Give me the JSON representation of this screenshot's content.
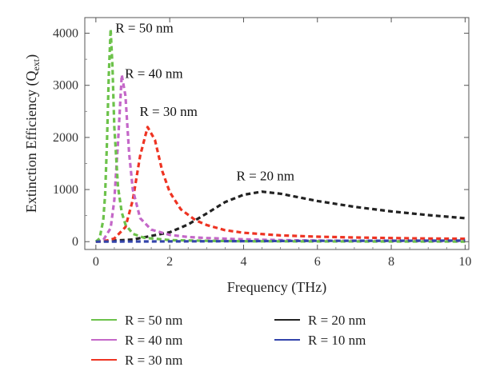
{
  "chart_data": {
    "type": "line",
    "xlabel": "Frequency (THz)",
    "ylabel": "Extinction Efficiency (Q",
    "ylabel_subscript": "ext",
    "ylabel_suffix": ")",
    "xlim": [
      -0.3,
      10.1
    ],
    "ylim": [
      -150,
      4300
    ],
    "xticks": [
      0,
      2,
      4,
      6,
      8,
      10
    ],
    "yticks": [
      0,
      1000,
      2000,
      3000,
      4000
    ],
    "grid": false,
    "legend_position": "bottom",
    "series": [
      {
        "name": "R = 50 nm",
        "color": "#6cc24a",
        "annotation": "R = 50 nm",
        "x": [
          0.0,
          0.1,
          0.2,
          0.25,
          0.3,
          0.35,
          0.4,
          0.45,
          0.5,
          0.6,
          0.7,
          0.8,
          1.0,
          1.3,
          2.0,
          3.0,
          4.0,
          6.0,
          8.0,
          10.0
        ],
        "y": [
          0,
          60,
          420,
          900,
          1900,
          3200,
          4080,
          3350,
          2200,
          1050,
          560,
          330,
          150,
          75,
          30,
          15,
          8,
          5,
          3,
          2
        ]
      },
      {
        "name": "R = 40 nm",
        "color": "#c467c8",
        "annotation": "R = 40 nm",
        "x": [
          0.0,
          0.2,
          0.4,
          0.5,
          0.6,
          0.7,
          0.8,
          0.9,
          1.0,
          1.2,
          1.5,
          2.0,
          2.5,
          3.0,
          4.0,
          5.0,
          6.0,
          8.0,
          10.0
        ],
        "y": [
          0,
          30,
          260,
          800,
          1900,
          3200,
          2800,
          1700,
          1000,
          450,
          230,
          130,
          90,
          70,
          45,
          30,
          20,
          12,
          8
        ]
      },
      {
        "name": "R = 30 nm",
        "color": "#ee3322",
        "annotation": "R = 30 nm",
        "x": [
          0.0,
          0.3,
          0.5,
          0.8,
          1.0,
          1.2,
          1.4,
          1.6,
          1.8,
          2.0,
          2.3,
          2.7,
          3.0,
          3.5,
          4.0,
          5.0,
          6.0,
          7.0,
          8.0,
          9.0,
          10.0
        ],
        "y": [
          0,
          20,
          60,
          280,
          800,
          1650,
          2200,
          1950,
          1350,
          950,
          620,
          410,
          320,
          220,
          170,
          120,
          95,
          80,
          70,
          60,
          55
        ]
      },
      {
        "name": "R = 20 nm",
        "color": "#222222",
        "annotation": "R = 20 nm",
        "x": [
          0.0,
          1.0,
          2.0,
          2.5,
          3.0,
          3.5,
          4.0,
          4.5,
          5.0,
          5.5,
          6.0,
          7.0,
          8.0,
          9.0,
          10.0
        ],
        "y": [
          0,
          40,
          180,
          330,
          540,
          760,
          900,
          960,
          920,
          850,
          780,
          670,
          580,
          510,
          450
        ]
      },
      {
        "name": "R = 10 nm",
        "color": "#3344aa",
        "x": [
          0.0,
          2.0,
          4.0,
          6.0,
          8.0,
          10.0
        ],
        "y": [
          0,
          5,
          10,
          15,
          18,
          20
        ]
      }
    ]
  }
}
